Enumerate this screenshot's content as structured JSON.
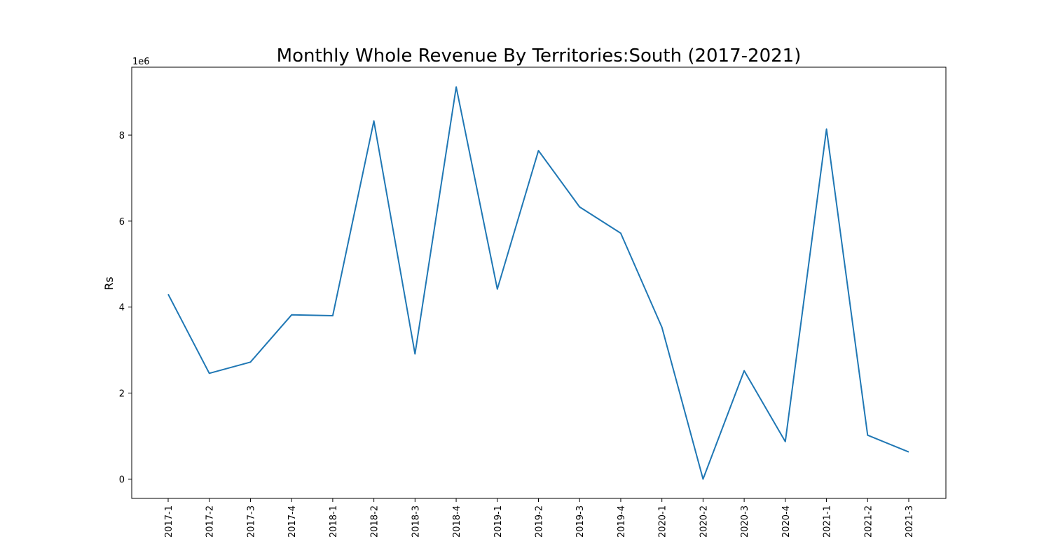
{
  "chart_data": {
    "type": "line",
    "title": "Monthly Whole Revenue By Territories:South (2017-2021)",
    "xlabel": "",
    "ylabel": "Rs",
    "y_offset_label": "1e6",
    "categories": [
      "2017-1",
      "2017-2",
      "2017-3",
      "2017-4",
      "2018-1",
      "2018-2",
      "2018-3",
      "2018-4",
      "2019-1",
      "2019-2",
      "2019-3",
      "2019-4",
      "2020-1",
      "2020-2",
      "2020-3",
      "2020-4",
      "2021-1",
      "2021-2",
      "2021-3"
    ],
    "series": [
      {
        "values": [
          4300000,
          2460000,
          2720000,
          3820000,
          3800000,
          8330000,
          2910000,
          9120000,
          4420000,
          7640000,
          6330000,
          5720000,
          3530000,
          0,
          2520000,
          870000,
          8140000,
          1020000,
          630000
        ],
        "color": "#1f77b4"
      }
    ],
    "y_ticks": [
      0,
      2,
      4,
      6,
      8
    ],
    "ylim": [
      -450000,
      9580000
    ],
    "grid": false,
    "legend": "none"
  }
}
